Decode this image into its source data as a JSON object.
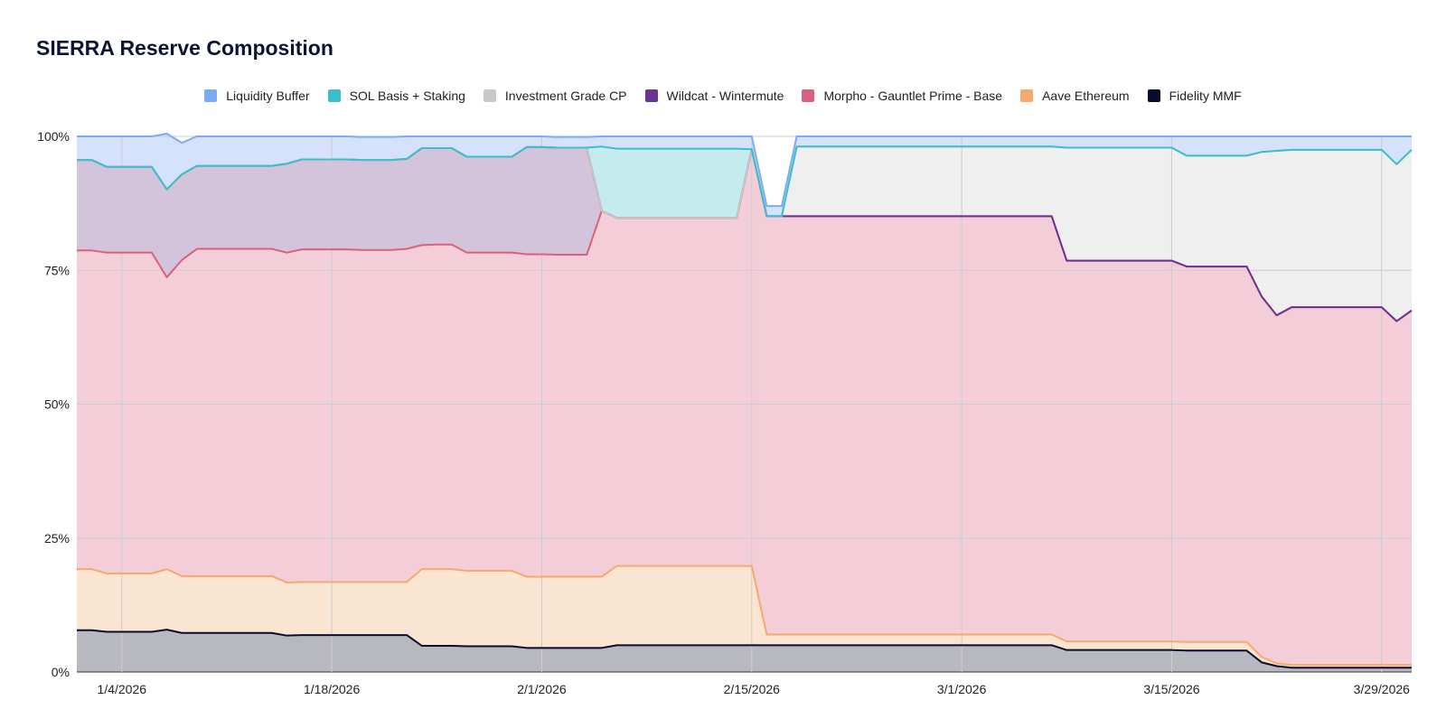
{
  "chart_data": {
    "type": "area",
    "stacked": true,
    "title": "SIERRA Reserve Composition",
    "xlabel": "",
    "ylabel": "",
    "ylim": [
      0,
      100
    ],
    "y_ticks": [
      "0%",
      "25%",
      "50%",
      "75%",
      "100%"
    ],
    "x_ticks": [
      "1/4/2026",
      "1/18/2026",
      "2/1/2026",
      "2/15/2026",
      "3/1/2026",
      "3/15/2026",
      "3/29/2026"
    ],
    "x_tick_days": [
      3,
      17,
      31,
      45,
      59,
      73,
      87
    ],
    "x_range_days": [
      0,
      89
    ],
    "grid": true,
    "legend_position": "top",
    "x_days": [
      0,
      1,
      2,
      3,
      4,
      5,
      6,
      7,
      8,
      9,
      10,
      11,
      12,
      13,
      14,
      15,
      16,
      17,
      18,
      19,
      20,
      21,
      22,
      23,
      24,
      25,
      26,
      27,
      28,
      29,
      30,
      31,
      32,
      33,
      34,
      35,
      36,
      37,
      38,
      39,
      40,
      41,
      42,
      43,
      44,
      45,
      46,
      47,
      48,
      49,
      50,
      51,
      52,
      53,
      54,
      55,
      56,
      57,
      58,
      59,
      60,
      61,
      62,
      63,
      64,
      65,
      66,
      67,
      68,
      69,
      70,
      71,
      72,
      73,
      74,
      75,
      76,
      77,
      78,
      79,
      80,
      81,
      82,
      83,
      84,
      85,
      86,
      87,
      88,
      89
    ],
    "x_dates": [
      "12/31/2025",
      "1/1/2026",
      "1/2/2026",
      "1/3/2026",
      "1/4/2026",
      "1/5/2026",
      "1/6/2026",
      "1/7/2026",
      "1/8/2026",
      "1/9/2026",
      "1/10/2026",
      "1/11/2026",
      "1/12/2026",
      "1/13/2026",
      "1/14/2026",
      "1/15/2026",
      "1/16/2026",
      "1/17/2026",
      "1/18/2026",
      "1/19/2026",
      "1/20/2026",
      "1/21/2026",
      "1/22/2026",
      "1/23/2026",
      "1/24/2026",
      "1/25/2026",
      "1/26/2026",
      "1/27/2026",
      "1/28/2026",
      "1/29/2026",
      "1/30/2026",
      "1/31/2026",
      "2/1/2026",
      "2/2/2026",
      "2/3/2026",
      "2/4/2026",
      "2/5/2026",
      "2/6/2026",
      "2/7/2026",
      "2/8/2026",
      "2/9/2026",
      "2/10/2026",
      "2/11/2026",
      "2/12/2026",
      "2/13/2026",
      "2/14/2026",
      "2/15/2026",
      "2/16/2026",
      "2/17/2026",
      "2/18/2026",
      "2/19/2026",
      "2/20/2026",
      "2/21/2026",
      "2/22/2026",
      "2/23/2026",
      "2/24/2026",
      "2/25/2026",
      "2/26/2026",
      "2/27/2026",
      "2/28/2026",
      "3/1/2026",
      "3/2/2026",
      "3/3/2026",
      "3/4/2026",
      "3/5/2026",
      "3/6/2026",
      "3/7/2026",
      "3/8/2026",
      "3/9/2026",
      "3/10/2026",
      "3/11/2026",
      "3/12/2026",
      "3/13/2026",
      "3/14/2026",
      "3/15/2026",
      "3/16/2026",
      "3/17/2026",
      "3/18/2026",
      "3/19/2026",
      "3/20/2026",
      "3/21/2026",
      "3/22/2026",
      "3/23/2026",
      "3/24/2026",
      "3/25/2026",
      "3/26/2026",
      "3/27/2026",
      "3/28/2026",
      "3/29/2026",
      "3/30/2026"
    ],
    "series": [
      {
        "name": "Fidelity MMF",
        "color": "#0b0b2e",
        "fill": "#b8b9c0",
        "values": [
          7.8,
          7.8,
          7.5,
          7.5,
          7.5,
          7.5,
          7.9,
          7.3,
          7.3,
          7.3,
          7.3,
          7.3,
          7.3,
          7.3,
          6.8,
          6.9,
          6.9,
          6.9,
          6.9,
          6.9,
          6.9,
          6.9,
          6.9,
          4.9,
          4.9,
          4.9,
          4.8,
          4.8,
          4.8,
          4.8,
          4.5,
          4.5,
          4.5,
          4.5,
          4.5,
          4.5,
          5.0,
          5.0,
          5.0,
          5.0,
          5.0,
          5.0,
          5.0,
          5.0,
          5.0,
          5.0,
          5.0,
          5.0,
          5.0,
          5.0,
          5.0,
          5.0,
          5.0,
          5.0,
          5.0,
          5.0,
          5.0,
          5.0,
          5.0,
          5.0,
          5.0,
          5.0,
          5.0,
          5.0,
          5.0,
          5.0,
          4.1,
          4.1,
          4.1,
          4.1,
          4.1,
          4.1,
          4.1,
          4.1,
          4.0,
          4.0,
          4.0,
          4.0,
          4.0,
          1.8,
          1.1,
          0.8,
          0.8,
          0.8,
          0.8,
          0.8,
          0.8,
          0.8,
          0.8,
          0.8
        ]
      },
      {
        "name": "Aave Ethereum",
        "color": "#f6a96a",
        "fill": "#fae5d3",
        "values": [
          11.4,
          11.4,
          10.9,
          10.9,
          10.9,
          10.9,
          11.3,
          10.6,
          10.6,
          10.6,
          10.6,
          10.6,
          10.6,
          10.6,
          9.9,
          9.9,
          9.9,
          9.9,
          9.9,
          9.9,
          9.9,
          9.9,
          9.9,
          14.3,
          14.3,
          14.3,
          14.1,
          14.1,
          14.1,
          14.1,
          13.3,
          13.3,
          13.3,
          13.3,
          13.3,
          13.3,
          14.8,
          14.8,
          14.8,
          14.8,
          14.8,
          14.8,
          14.8,
          14.8,
          14.8,
          14.8,
          2.0,
          2.0,
          2.0,
          2.0,
          2.0,
          2.0,
          2.0,
          2.0,
          2.0,
          2.0,
          2.0,
          2.0,
          2.0,
          2.0,
          2.0,
          2.0,
          2.0,
          2.0,
          2.0,
          2.0,
          1.6,
          1.6,
          1.6,
          1.6,
          1.6,
          1.6,
          1.6,
          1.6,
          1.6,
          1.6,
          1.6,
          1.6,
          1.6,
          1.0,
          0.5,
          0.5,
          0.5,
          0.5,
          0.5,
          0.5,
          0.5,
          0.5,
          0.5,
          0.5
        ]
      },
      {
        "name": "Morpho - Gauntlet Prime - Base",
        "color": "#d9607f",
        "fill": "#f3ced9",
        "values": [
          59.5,
          59.5,
          59.9,
          59.9,
          59.9,
          59.9,
          54.5,
          59.0,
          61.1,
          61.1,
          61.1,
          61.1,
          61.1,
          61.1,
          61.6,
          62.1,
          62.1,
          62.1,
          62.1,
          62.0,
          62.0,
          62.0,
          62.2,
          60.5,
          60.6,
          60.6,
          59.4,
          59.4,
          59.4,
          59.4,
          60.2,
          60.2,
          60.1,
          60.1,
          60.1,
          68.3,
          65.0,
          65.0,
          65.0,
          65.0,
          65.0,
          65.0,
          65.0,
          65.0,
          65.0,
          77.8,
          78.1,
          78.1,
          78.1,
          78.1,
          78.1,
          78.1,
          78.1,
          78.1,
          78.1,
          78.1,
          78.1,
          78.1,
          78.1,
          78.1,
          78.1,
          78.1,
          78.1,
          78.1,
          78.1,
          78.1,
          71.1,
          71.1,
          71.1,
          71.1,
          71.1,
          71.1,
          71.1,
          71.1,
          70.1,
          70.1,
          70.1,
          70.1,
          70.1,
          67.3,
          65.0,
          66.8,
          66.8,
          66.8,
          66.8,
          66.8,
          66.8,
          66.8,
          64.2,
          66.2
        ]
      },
      {
        "name": "Wildcat - Wintermute",
        "color": "#6a3590",
        "fill": "#d3c4dc",
        "values": [
          16.9,
          16.9,
          16.0,
          16.0,
          16.0,
          16.0,
          16.4,
          16.0,
          15.5,
          15.5,
          15.5,
          15.5,
          15.5,
          15.5,
          16.6,
          16.8,
          16.8,
          16.8,
          16.8,
          16.8,
          16.8,
          16.8,
          16.8,
          18.1,
          18.0,
          18.0,
          17.9,
          17.9,
          17.9,
          17.9,
          20.0,
          20.0,
          20.0,
          20.0,
          20.0,
          0.0,
          0.0,
          0.0,
          0.0,
          0.0,
          0.0,
          0.0,
          0.0,
          0.0,
          0.0,
          0.0,
          0.0,
          0.0,
          0.0,
          0.0,
          0.0,
          0.0,
          0.0,
          0.0,
          0.0,
          0.0,
          0.0,
          0.0,
          0.0,
          0.0,
          0.0,
          0.0,
          0.0,
          0.0,
          0.0,
          0.0,
          0.0,
          0.0,
          0.0,
          0.0,
          0.0,
          0.0,
          0.0,
          0.0,
          0.0,
          0.0,
          0.0,
          0.0,
          0.0,
          0.0,
          0.0,
          0.0,
          0.0,
          0.0,
          0.0,
          0.0,
          0.0,
          0.0,
          0.0,
          0.0
        ]
      },
      {
        "name": "Investment Grade CP",
        "color": "#c8c8c8",
        "fill": "#efefef",
        "values": [
          0,
          0,
          0,
          0,
          0,
          0,
          0,
          0,
          0,
          0,
          0,
          0,
          0,
          0,
          0,
          0,
          0,
          0,
          0,
          0,
          0,
          0,
          0,
          0,
          0,
          0,
          0,
          0,
          0,
          0,
          0,
          0,
          0,
          0,
          0,
          0,
          0,
          0,
          0,
          0,
          0,
          0,
          0,
          0,
          0,
          0,
          0,
          0,
          13.0,
          13.0,
          13.0,
          13.0,
          13.0,
          13.0,
          13.0,
          13.0,
          13.0,
          13.0,
          13.0,
          13.0,
          13.0,
          13.0,
          13.0,
          13.0,
          13.0,
          13.0,
          21.1,
          21.1,
          21.1,
          21.1,
          21.1,
          21.1,
          21.1,
          21.1,
          20.7,
          20.7,
          20.7,
          20.7,
          20.7,
          27.0,
          30.7,
          29.4,
          29.4,
          29.4,
          29.4,
          29.4,
          29.4,
          29.4,
          29.3,
          30.0
        ]
      },
      {
        "name": "SOL Basis + Staking",
        "color": "#3ebdca",
        "fill": "#c5ebee",
        "values": [
          0,
          0,
          0,
          0,
          0,
          0,
          0,
          0,
          0,
          0,
          0,
          0,
          0,
          0,
          0,
          0,
          0,
          0,
          0,
          0,
          0,
          0,
          0,
          0,
          0,
          0,
          0,
          0,
          0,
          0,
          0,
          0,
          0,
          0,
          0,
          12.0,
          12.9,
          12.9,
          12.9,
          12.9,
          12.9,
          12.9,
          12.9,
          12.9,
          12.9,
          0,
          0,
          0,
          0,
          0,
          0,
          0,
          0,
          0,
          0,
          0,
          0,
          0,
          0,
          0,
          0,
          0,
          0,
          0,
          0,
          0,
          0,
          0,
          0,
          0,
          0,
          0,
          0,
          0,
          0,
          0,
          0,
          0,
          0,
          0,
          0,
          0,
          0,
          0,
          0,
          0,
          0,
          0,
          0,
          0
        ]
      },
      {
        "name": "Liquidity Buffer",
        "color": "#7baaf7",
        "fill": "#d5e2fc",
        "values": [
          4.4,
          4.4,
          5.7,
          5.7,
          5.7,
          5.7,
          10.4,
          5.9,
          5.5,
          5.5,
          5.5,
          5.5,
          5.5,
          5.5,
          5.1,
          4.3,
          4.3,
          4.3,
          4.3,
          4.3,
          4.3,
          4.3,
          4.2,
          2.2,
          2.2,
          2.2,
          3.8,
          3.8,
          3.8,
          3.8,
          2.0,
          2.0,
          2.0,
          2.0,
          2.0,
          1.9,
          2.3,
          2.3,
          2.3,
          2.3,
          2.3,
          2.3,
          2.3,
          2.3,
          2.3,
          2.4,
          1.9,
          1.9,
          1.9,
          1.9,
          1.9,
          1.9,
          1.9,
          1.9,
          1.9,
          1.9,
          1.9,
          1.9,
          1.9,
          1.9,
          1.9,
          1.9,
          1.9,
          1.9,
          1.9,
          1.9,
          2.1,
          2.1,
          2.1,
          2.1,
          2.1,
          2.1,
          2.1,
          2.1,
          3.6,
          3.6,
          3.6,
          3.6,
          3.6,
          2.9,
          2.7,
          2.5,
          2.5,
          2.5,
          2.5,
          2.5,
          2.5,
          2.5,
          5.2,
          2.5
        ]
      }
    ],
    "legend_order": [
      "Liquidity Buffer",
      "SOL Basis + Staking",
      "Investment Grade CP",
      "Wildcat - Wintermute",
      "Morpho - Gauntlet Prime - Base",
      "Aave Ethereum",
      "Fidelity MMF"
    ]
  }
}
